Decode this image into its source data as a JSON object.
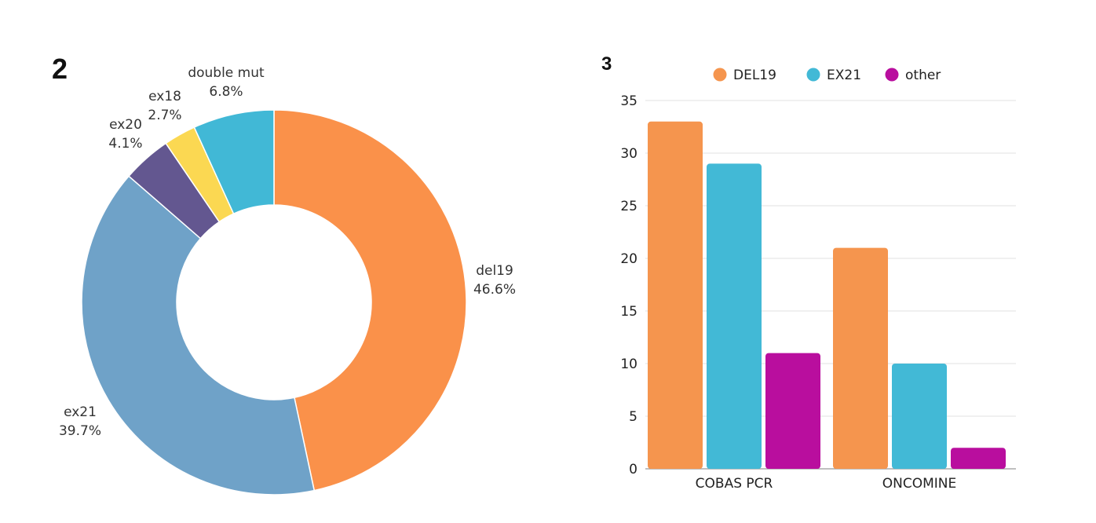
{
  "chart_data": [
    {
      "panel": "2",
      "type": "pie",
      "variant": "donut",
      "slices": [
        {
          "name": "del19",
          "value": 46.6,
          "label": "46.6%",
          "color": "#FA914A"
        },
        {
          "name": "ex21",
          "value": 39.7,
          "label": "39.7%",
          "color": "#6FA2C8"
        },
        {
          "name": "ex20",
          "value": 4.1,
          "label": "4.1%",
          "color": "#635790"
        },
        {
          "name": "ex18",
          "value": 2.7,
          "label": "2.7%",
          "color": "#FBD852"
        },
        {
          "name": "double mut",
          "value": 6.8,
          "label": "6.8%",
          "color": "#41B8D6"
        }
      ]
    },
    {
      "panel": "3",
      "type": "bar",
      "categories": [
        "COBAS PCR",
        "ONCOMINE"
      ],
      "series": [
        {
          "name": "DEL19",
          "values": [
            33,
            21
          ],
          "color": "#F5954E"
        },
        {
          "name": "EX21",
          "values": [
            29,
            10
          ],
          "color": "#42B9D6"
        },
        {
          "name": "other",
          "values": [
            11,
            2
          ],
          "color": "#B90E9E"
        }
      ],
      "ylim": [
        0,
        35
      ],
      "yticks": [
        "0",
        "5",
        "10",
        "15",
        "20",
        "25",
        "30",
        "35"
      ],
      "grid": true,
      "legend": "top"
    }
  ]
}
